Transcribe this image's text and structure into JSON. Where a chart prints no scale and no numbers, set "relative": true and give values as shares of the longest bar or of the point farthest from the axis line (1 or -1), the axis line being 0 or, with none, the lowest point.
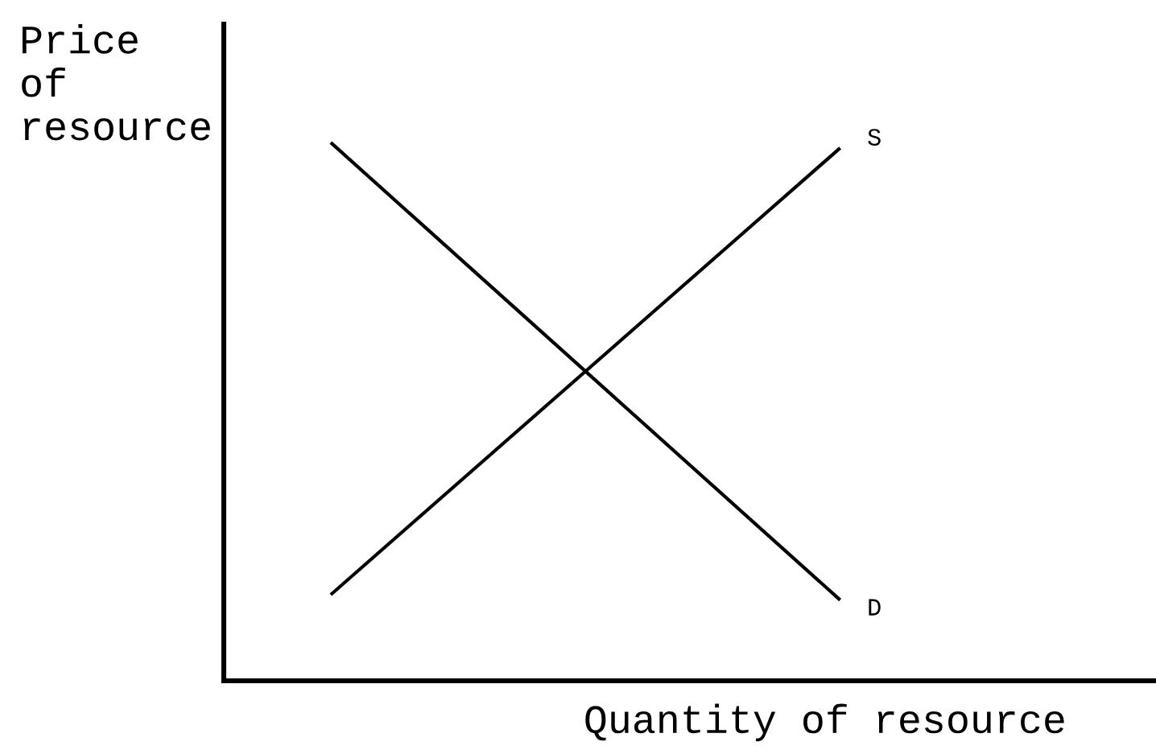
{
  "chart_data": {
    "type": "line",
    "relative": true,
    "xlabel": "Quantity of resource",
    "ylabel": "Price\nof\nresource",
    "categories": [
      null,
      null
    ],
    "series": [
      {
        "name": "D",
        "color": "#000000",
        "values": [
          1,
          0.15
        ]
      },
      {
        "name": "S",
        "color": "#000000",
        "values": [
          0.16,
          0.99
        ]
      }
    ]
  }
}
